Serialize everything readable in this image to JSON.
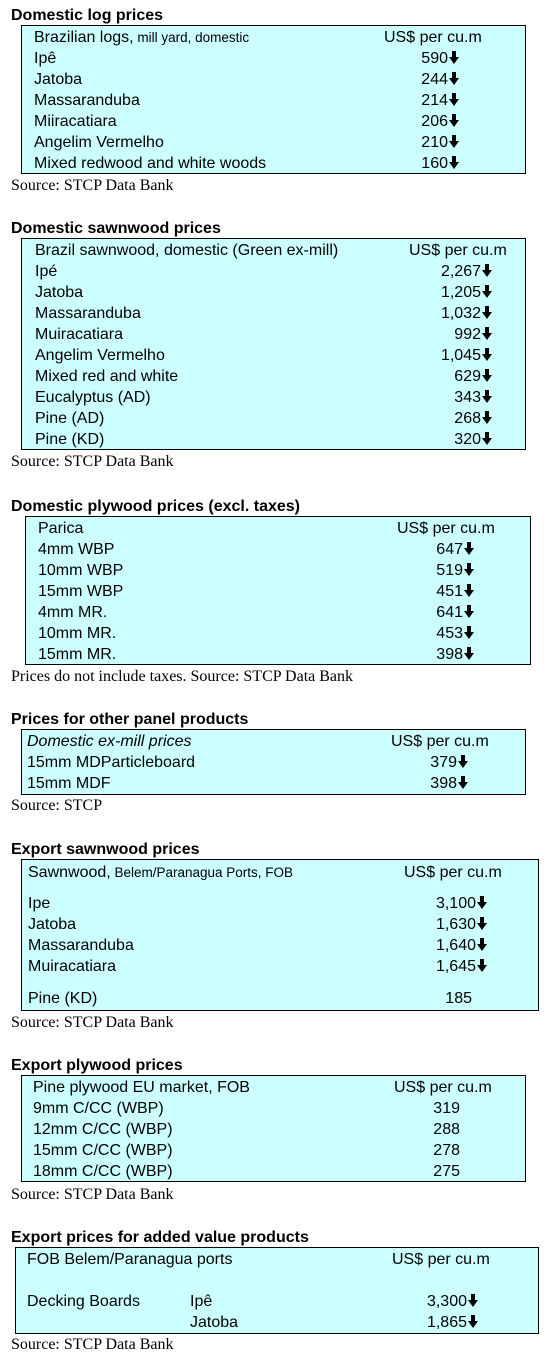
{
  "sections": [
    {
      "title": "Domestic log prices",
      "header": {
        "label": "Brazilian logs,",
        "label_small": " mill yard, domestic",
        "unit": "US$ per cu.m"
      },
      "rows": [
        {
          "label": "Ipê",
          "value": "590",
          "arrow": "down"
        },
        {
          "label": "Jatoba",
          "value": "244",
          "arrow": "down"
        },
        {
          "label": "Massaranduba",
          "value": "214",
          "arrow": "down"
        },
        {
          "label": "Miiracatiara",
          "value": "206",
          "arrow": "down"
        },
        {
          "label": "Angelim Vermelho",
          "value": "210",
          "arrow": "down"
        },
        {
          "label": "Mixed redwood and white woods",
          "value": "160",
          "arrow": "down"
        }
      ],
      "source": "Source: STCP Data Bank"
    },
    {
      "title": "Domestic sawnwood prices",
      "header": {
        "label": "Brazil sawnwood, domestic (Green ex-mill)",
        "unit": "US$ per cu.m"
      },
      "rows": [
        {
          "label": "Ipé",
          "value": "2,267",
          "arrow": "down"
        },
        {
          "label": "Jatoba",
          "value": "1,205",
          "arrow": "down"
        },
        {
          "label": "Massaranduba",
          "value": "1,032",
          "arrow": "down"
        },
        {
          "label": "Muiracatiara",
          "value": "992",
          "arrow": "down"
        },
        {
          "label": "Angelim Vermelho",
          "value": "1,045",
          "arrow": "down"
        },
        {
          "label": "Mixed red and white",
          "value": "629",
          "arrow": "down"
        },
        {
          "label": "Eucalyptus (AD)",
          "value": "343",
          "arrow": "down"
        },
        {
          "label": "Pine (AD)",
          "value": "268",
          "arrow": "down"
        },
        {
          "label": "Pine (KD)",
          "value": "320",
          "arrow": "down"
        }
      ],
      "source": "Source: STCP Data Bank"
    },
    {
      "title": "Domestic plywood prices (excl. taxes)",
      "header": {
        "label": "Parica",
        "unit": "US$ per cu.m"
      },
      "rows": [
        {
          "label": "4mm WBP",
          "value": "647",
          "arrow": "down"
        },
        {
          "label": "10mm WBP",
          "value": "519",
          "arrow": "down"
        },
        {
          "label": "15mm WBP",
          "value": "451",
          "arrow": "down"
        },
        {
          "label": "4mm MR.",
          "value": "641",
          "arrow": "down"
        },
        {
          "label": "10mm MR.",
          "value": "453",
          "arrow": "down"
        },
        {
          "label": "15mm MR.",
          "value": "398",
          "arrow": "down"
        }
      ],
      "source": "Prices do not include taxes. Source: STCP Data Bank"
    },
    {
      "title": "Prices for other panel products",
      "header": {
        "label": "Domestic ex-mill prices",
        "unit": "US$ per cu.m"
      },
      "rows": [
        {
          "label": "15mm MDParticleboard",
          "value": "379",
          "arrow": "down"
        },
        {
          "label": "15mm MDF",
          "value": "398",
          "arrow": "down"
        }
      ],
      "source": "Source: STCP"
    },
    {
      "title": "Export sawnwood prices",
      "header": {
        "label": "Sawnwood,",
        "label_small": " Belem/Paranagua Ports, FOB",
        "unit": "US$ per cu.m"
      },
      "rows": [
        {
          "label": "Ipe",
          "value": "3,100",
          "arrow": "down"
        },
        {
          "label": "Jatoba",
          "value": "1,630",
          "arrow": "down"
        },
        {
          "label": "Massaranduba",
          "value": "1,640",
          "arrow": "down"
        },
        {
          "label": "Muiracatiara",
          "value": "1,645",
          "arrow": "down"
        },
        {
          "label": "Pine (KD)",
          "value": "185",
          "arrow": "none"
        }
      ],
      "source": "Source: STCP Data Bank"
    },
    {
      "title": "Export plywood prices",
      "header": {
        "label": "Pine plywood EU market, FOB",
        "unit": "US$ per cu.m"
      },
      "rows": [
        {
          "label": "9mm C/CC (WBP)",
          "value": "319",
          "arrow": "none"
        },
        {
          "label": "12mm C/CC (WBP)",
          "value": "288",
          "arrow": "none"
        },
        {
          "label": "15mm C/CC (WBP)",
          "value": "278",
          "arrow": "none"
        },
        {
          "label": "18mm C/CC (WBP)",
          "value": "275",
          "arrow": "none"
        }
      ],
      "source": "Source: STCP Data Bank"
    },
    {
      "title": "Export prices for added value products",
      "header": {
        "label": "FOB Belem/Paranagua ports",
        "unit": "US$ per cu.m"
      },
      "group_label": "Decking Boards",
      "rows": [
        {
          "label": "Ipê",
          "value": "3,300",
          "arrow": "down"
        },
        {
          "label": "Jatoba",
          "value": "1,865",
          "arrow": "down"
        }
      ],
      "source": "Source: STCP Data Bank"
    }
  ]
}
